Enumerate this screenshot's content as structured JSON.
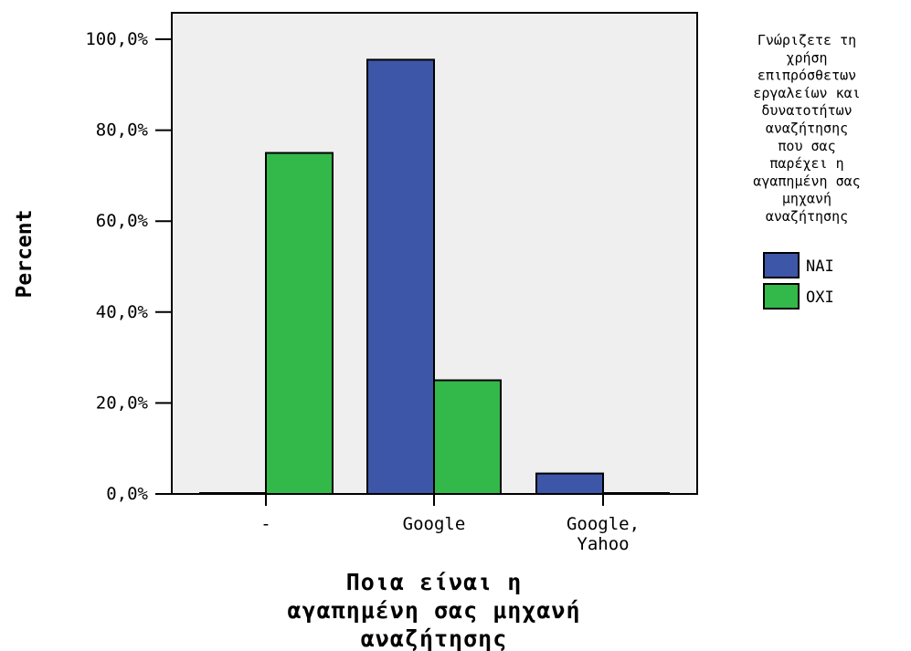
{
  "chart_data": {
    "type": "bar",
    "categories": [
      "-",
      "Google",
      "Google,\nYahoo"
    ],
    "series": [
      {
        "name": "NAI",
        "color": "#3e56a8",
        "values": [
          0.0,
          95.5,
          4.5
        ]
      },
      {
        "name": "OXI",
        "color": "#33b84a",
        "values": [
          75.0,
          25.0,
          0.0
        ]
      }
    ],
    "ylabel": "Percent",
    "xlabel_lines": [
      "Ποια είναι η",
      "αγαπημένη σας μηχανή",
      "αναζήτησης"
    ],
    "ylim": [
      0,
      100
    ],
    "yticks": [
      0,
      20,
      40,
      60,
      80,
      100
    ],
    "ytick_labels": [
      "0,0%",
      "20,0%",
      "40,0%",
      "60,0%",
      "80,0%",
      "100,0%"
    ],
    "legend_title_lines": [
      "Γνώριζετε τη",
      "χρήση",
      "επιπρόσθετων",
      "εργαλείων και",
      "δυνατοτήτων",
      "αναζήτησης",
      "που σας",
      "παρέχει η",
      "αγαπημένη σας",
      "μηχανή",
      "αναζήτησης"
    ],
    "legend_placement": "right",
    "plot_background": "#efefef",
    "grid": false
  }
}
